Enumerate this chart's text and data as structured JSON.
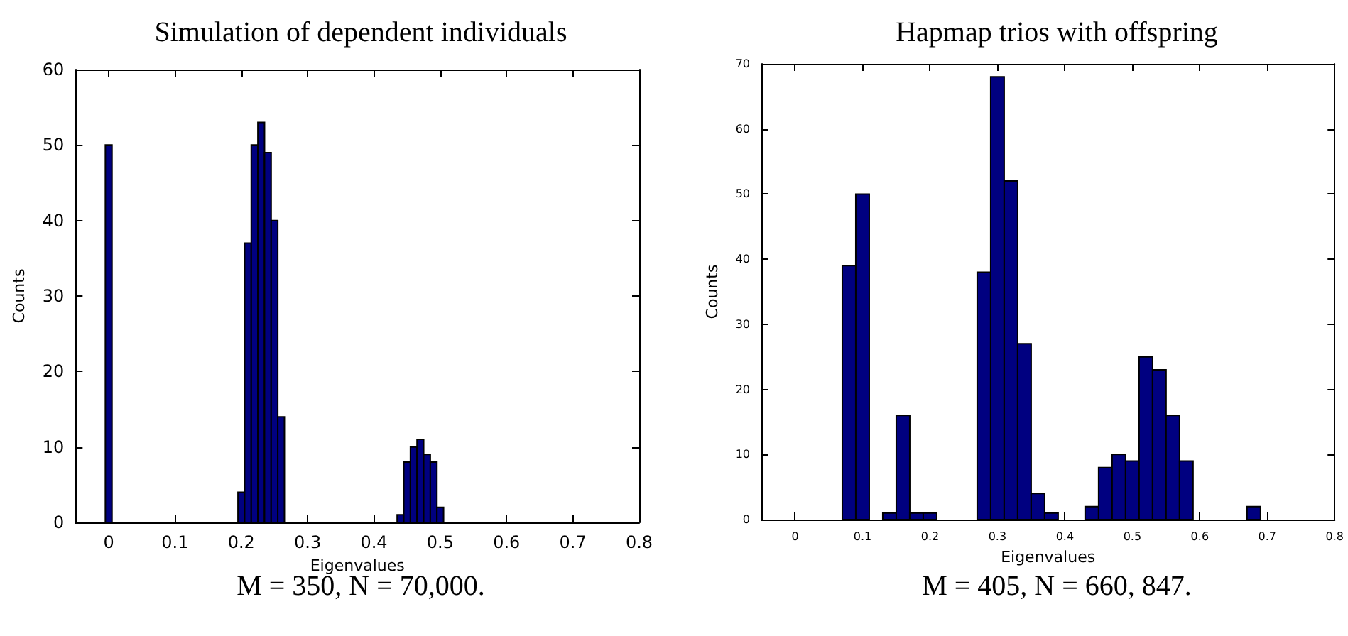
{
  "chart_data": [
    {
      "type": "histogram",
      "title": "Simulation of dependent individuals",
      "xlabel": "Eigenvalues",
      "ylabel": "Counts",
      "color": "#000080",
      "bins": [
        -0.005,
        0.005,
        0.015,
        0.025,
        0.035,
        0.045,
        0.055,
        0.065,
        0.075,
        0.085,
        0.095,
        0.105,
        0.115,
        0.125,
        0.135,
        0.145,
        0.155,
        0.165,
        0.175,
        0.185,
        0.195,
        0.205,
        0.215,
        0.225,
        0.235,
        0.245,
        0.255,
        0.265,
        0.275,
        0.285,
        0.295,
        0.305,
        0.315,
        0.325,
        0.335,
        0.345,
        0.355,
        0.365,
        0.375,
        0.385,
        0.395,
        0.405,
        0.415,
        0.425,
        0.435,
        0.445,
        0.455,
        0.465,
        0.475,
        0.485,
        0.495,
        0.505
      ],
      "values": [
        50,
        0,
        0,
        0,
        0,
        0,
        0,
        0,
        0,
        0,
        0,
        0,
        0,
        0,
        0,
        0,
        0,
        0,
        0,
        0,
        4,
        37,
        50,
        53,
        49,
        40,
        14,
        0,
        0,
        0,
        0,
        0,
        0,
        0,
        0,
        0,
        0,
        0,
        0,
        0,
        0,
        0,
        0,
        0,
        1,
        8,
        10,
        11,
        9,
        8,
        2
      ],
      "xlim": [
        -0.05,
        0.8
      ],
      "xticks": [
        0,
        0.1,
        0.2,
        0.3,
        0.4,
        0.5,
        0.6,
        0.7,
        0.8
      ],
      "ylim": [
        0,
        60
      ],
      "yticks": [
        0,
        10,
        20,
        30,
        40,
        50,
        60
      ],
      "annotations": [
        "M = 350, N = 70,000."
      ]
    },
    {
      "type": "histogram",
      "title": "Hapmap trios with offspring",
      "xlabel": "Eigenvalues",
      "ylabel": "Counts",
      "color": "#000080",
      "bins": [
        0.07,
        0.09,
        0.11,
        0.13,
        0.15,
        0.17,
        0.19,
        0.21,
        0.23,
        0.25,
        0.27,
        0.29,
        0.31,
        0.33,
        0.35,
        0.37,
        0.39,
        0.41,
        0.43,
        0.45,
        0.47,
        0.49,
        0.51,
        0.53,
        0.55,
        0.57,
        0.59,
        0.61,
        0.63,
        0.65,
        0.67,
        0.69
      ],
      "values": [
        39,
        50,
        0,
        1,
        16,
        1,
        1,
        0,
        0,
        0,
        38,
        68,
        52,
        27,
        4,
        1,
        0,
        0,
        2,
        8,
        10,
        9,
        25,
        23,
        16,
        9,
        0,
        0,
        0,
        0,
        2
      ],
      "xlim": [
        -0.05,
        0.8
      ],
      "xticks": [
        0,
        0.1,
        0.2,
        0.3,
        0.4,
        0.5,
        0.6,
        0.7,
        0.8
      ],
      "ylim": [
        0,
        70
      ],
      "yticks": [
        0,
        10,
        20,
        30,
        40,
        50,
        60,
        70
      ],
      "annotations": [
        "M = 405, N = 660, 847."
      ]
    }
  ]
}
